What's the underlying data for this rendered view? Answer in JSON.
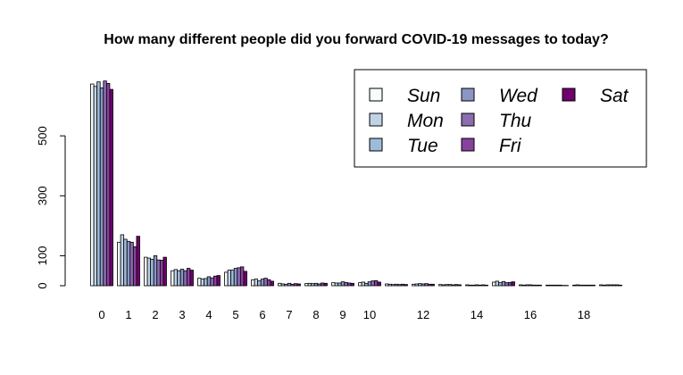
{
  "chart_data": {
    "type": "bar",
    "title": "How many different people did you forward COVID-19 messages to today?",
    "xlabel": "",
    "ylabel": "",
    "ylim": [
      0,
      700
    ],
    "y_ticks": [
      0,
      100,
      300,
      500
    ],
    "x_tick_labels": [
      "0",
      "1",
      "2",
      "3",
      "4",
      "5",
      "6",
      "7",
      "8",
      "9",
      "10",
      "12",
      "14",
      "16",
      "18"
    ],
    "categories": [
      "0",
      "1",
      "2",
      "3",
      "4",
      "5",
      "6",
      "7",
      "8",
      "9",
      "10",
      "11",
      "12",
      "13",
      "14",
      "15",
      "16",
      "17",
      "18",
      "19"
    ],
    "legend_position": "top-right",
    "legend_columns": 3,
    "series": [
      {
        "name": "Sun",
        "color": "#f7fcfd",
        "values": [
          673,
          145,
          95,
          50,
          25,
          45,
          20,
          8,
          7,
          10,
          10,
          6,
          5,
          4,
          3,
          12,
          3,
          2,
          2,
          3
        ]
      },
      {
        "name": "Mon",
        "color": "#bfd3e6",
        "values": [
          665,
          170,
          92,
          54,
          22,
          52,
          22,
          6,
          8,
          9,
          12,
          5,
          6,
          3,
          2,
          15,
          2,
          2,
          3,
          2
        ]
      },
      {
        "name": "Tue",
        "color": "#9ebcda",
        "values": [
          680,
          155,
          88,
          50,
          24,
          52,
          16,
          5,
          7,
          9,
          8,
          4,
          7,
          4,
          2,
          10,
          3,
          2,
          2,
          3
        ]
      },
      {
        "name": "Wed",
        "color": "#8c96c6",
        "values": [
          660,
          148,
          100,
          55,
          30,
          58,
          22,
          8,
          8,
          13,
          13,
          5,
          6,
          4,
          3,
          14,
          3,
          2,
          2,
          3
        ]
      },
      {
        "name": "Thu",
        "color": "#8c6bb1",
        "values": [
          683,
          145,
          86,
          50,
          26,
          60,
          25,
          5,
          6,
          11,
          16,
          4,
          7,
          3,
          2,
          10,
          2,
          2,
          2,
          3
        ]
      },
      {
        "name": "Fri",
        "color": "#88419d",
        "values": [
          675,
          130,
          85,
          58,
          32,
          63,
          20,
          7,
          9,
          9,
          17,
          5,
          5,
          4,
          3,
          11,
          2,
          1,
          2,
          3
        ]
      },
      {
        "name": "Sat",
        "color": "#6e016b",
        "values": [
          655,
          165,
          95,
          52,
          34,
          48,
          15,
          6,
          8,
          8,
          12,
          4,
          5,
          3,
          2,
          13,
          2,
          1,
          2,
          2
        ]
      }
    ]
  }
}
